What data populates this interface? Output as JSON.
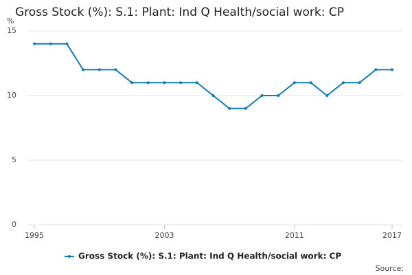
{
  "chart_data": {
    "type": "line",
    "title": "Gross Stock (%): S.1: Plant: Ind Q Health/social work: CP",
    "y_unit": "%",
    "source": "Source:",
    "x": [
      1995,
      1996,
      1997,
      1998,
      1999,
      2000,
      2001,
      2002,
      2003,
      2004,
      2005,
      2006,
      2007,
      2008,
      2009,
      2010,
      2011,
      2012,
      2013,
      2014,
      2015,
      2016,
      2017
    ],
    "series": [
      {
        "name": "Gross Stock (%): S.1: Plant: Ind Q Health/social work: CP",
        "color": "#0f7cb6",
        "values": [
          14,
          14,
          14,
          12,
          12,
          12,
          11,
          11,
          11,
          11,
          11,
          10,
          9,
          9,
          10,
          10,
          11,
          11,
          10,
          11,
          11,
          12,
          12
        ]
      }
    ],
    "xlim": [
      1995,
      2017
    ],
    "xticks": [
      1995,
      2003,
      2011,
      2017
    ],
    "ylim": [
      0,
      15
    ],
    "yticks": [
      0,
      5,
      10,
      15
    ],
    "grid": true
  }
}
